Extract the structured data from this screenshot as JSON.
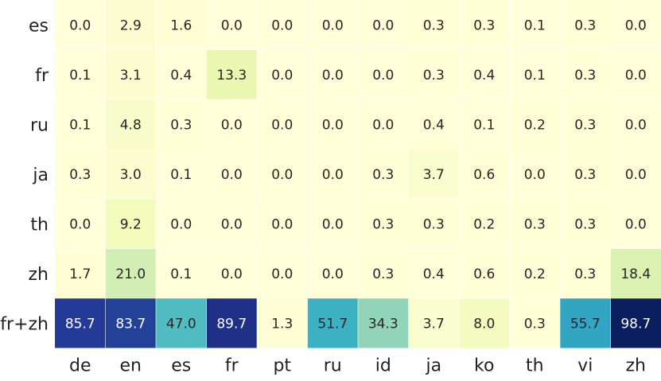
{
  "chart_data": {
    "type": "heatmap",
    "title": "",
    "xlabel": "",
    "ylabel": "",
    "rows": [
      "es",
      "fr",
      "ru",
      "ja",
      "th",
      "zh",
      "fr+zh"
    ],
    "columns": [
      "de",
      "en",
      "es",
      "fr",
      "pt",
      "ru",
      "id",
      "ja",
      "ko",
      "th",
      "vi",
      "zh"
    ],
    "values": [
      [
        0.0,
        2.9,
        1.6,
        0.0,
        0.0,
        0.0,
        0.0,
        0.3,
        0.3,
        0.1,
        0.3,
        0.0
      ],
      [
        0.1,
        3.1,
        0.4,
        13.3,
        0.0,
        0.0,
        0.0,
        0.3,
        0.4,
        0.1,
        0.3,
        0.0
      ],
      [
        0.1,
        4.8,
        0.3,
        0.0,
        0.0,
        0.0,
        0.0,
        0.4,
        0.1,
        0.2,
        0.3,
        0.0
      ],
      [
        0.3,
        3.0,
        0.1,
        0.0,
        0.0,
        0.0,
        0.3,
        3.7,
        0.6,
        0.0,
        0.3,
        0.0
      ],
      [
        0.0,
        9.2,
        0.0,
        0.0,
        0.0,
        0.0,
        0.3,
        0.3,
        0.2,
        0.3,
        0.3,
        0.0
      ],
      [
        1.7,
        21.0,
        0.1,
        0.0,
        0.0,
        0.0,
        0.3,
        0.4,
        0.6,
        0.2,
        0.3,
        18.4
      ],
      [
        85.7,
        83.7,
        47.0,
        89.7,
        1.3,
        51.7,
        34.3,
        3.7,
        8.0,
        0.3,
        55.7,
        98.7
      ]
    ],
    "value_range": [
      0,
      100
    ],
    "colormap": "YlGnBu",
    "colors": {
      "low": "#ffffd9",
      "mid": "#41b6c4",
      "high": "#081d58"
    },
    "grid": false,
    "legend": "none"
  }
}
